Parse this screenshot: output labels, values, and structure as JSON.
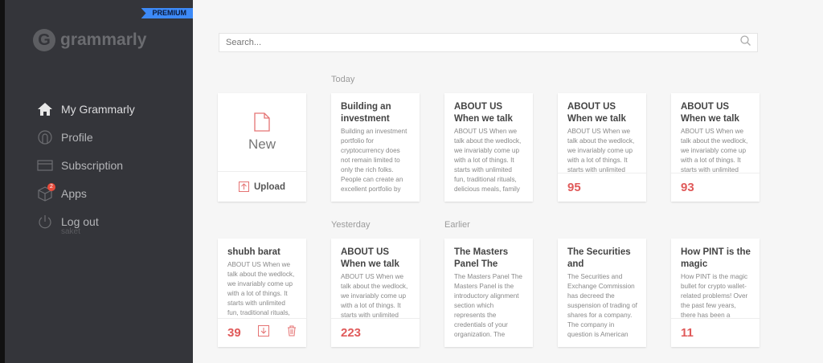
{
  "sidebar": {
    "premium": "PREMIUM",
    "logo": "grammarly",
    "items": [
      {
        "label": "My Grammarly",
        "icon": "home-icon"
      },
      {
        "label": "Profile",
        "icon": "user-icon"
      },
      {
        "label": "Subscription",
        "icon": "credit-card-icon"
      },
      {
        "label": "Apps",
        "icon": "box-icon",
        "badge": "2"
      },
      {
        "label": "Log out",
        "icon": "power-icon"
      }
    ],
    "username": "saket"
  },
  "search": {
    "placeholder": "Search..."
  },
  "sections": {
    "today": "Today",
    "yesterday": "Yesterday",
    "earlier": "Earlier"
  },
  "new_card": {
    "new": "New",
    "upload": "Upload"
  },
  "colors": {
    "accent": "#e05a5a",
    "premium": "#3d8af7",
    "sidebar": "#34353a"
  },
  "documents": [
    {
      "title": "Building an investment",
      "body": "Building an investment portfolio for cryptocurrency does not remain limited to only the rich folks. People can create an excellent portfolio by"
    },
    {
      "title": "ABOUT US When we talk",
      "body": "ABOUT US When we talk about the wedlock, we invariably come up with a lot of things. It starts with unlimited fun, traditional rituals, delicious meals, family"
    },
    {
      "title": "ABOUT US When we talk",
      "body": "ABOUT US When we talk about the wedlock, we invariably come up with a lot of things. It starts with unlimited",
      "score": "95"
    },
    {
      "title": "ABOUT US When we talk",
      "body": "ABOUT US When we talk about the wedlock, we invariably come up with a lot of things. It starts with unlimited",
      "score": "93"
    },
    {
      "title": "shubh barat",
      "body": "ABOUT US When we talk about the wedlock, we invariably come up with a lot of things. It starts with unlimited fun, traditional rituals,",
      "score": "39"
    },
    {
      "title": "ABOUT US When we talk",
      "body": "ABOUT US When we talk about the wedlock, we invariably come up with a lot of things. It starts with unlimited",
      "score": "223"
    },
    {
      "title": "The Masters Panel The",
      "body": "The Masters Panel The Masters Panel is the introductory alignment section which represents the credentials of your organization. The"
    },
    {
      "title": "The Securities and",
      "body": "The Securities and Exchange Commission has decreed the suspension of trading of shares for a company. The company in question is American"
    },
    {
      "title": "How PINT is the magic",
      "body": "How PINT is the magic bullet for crypto wallet-related problems! Over the past few years, there has been a",
      "score": "11"
    }
  ]
}
